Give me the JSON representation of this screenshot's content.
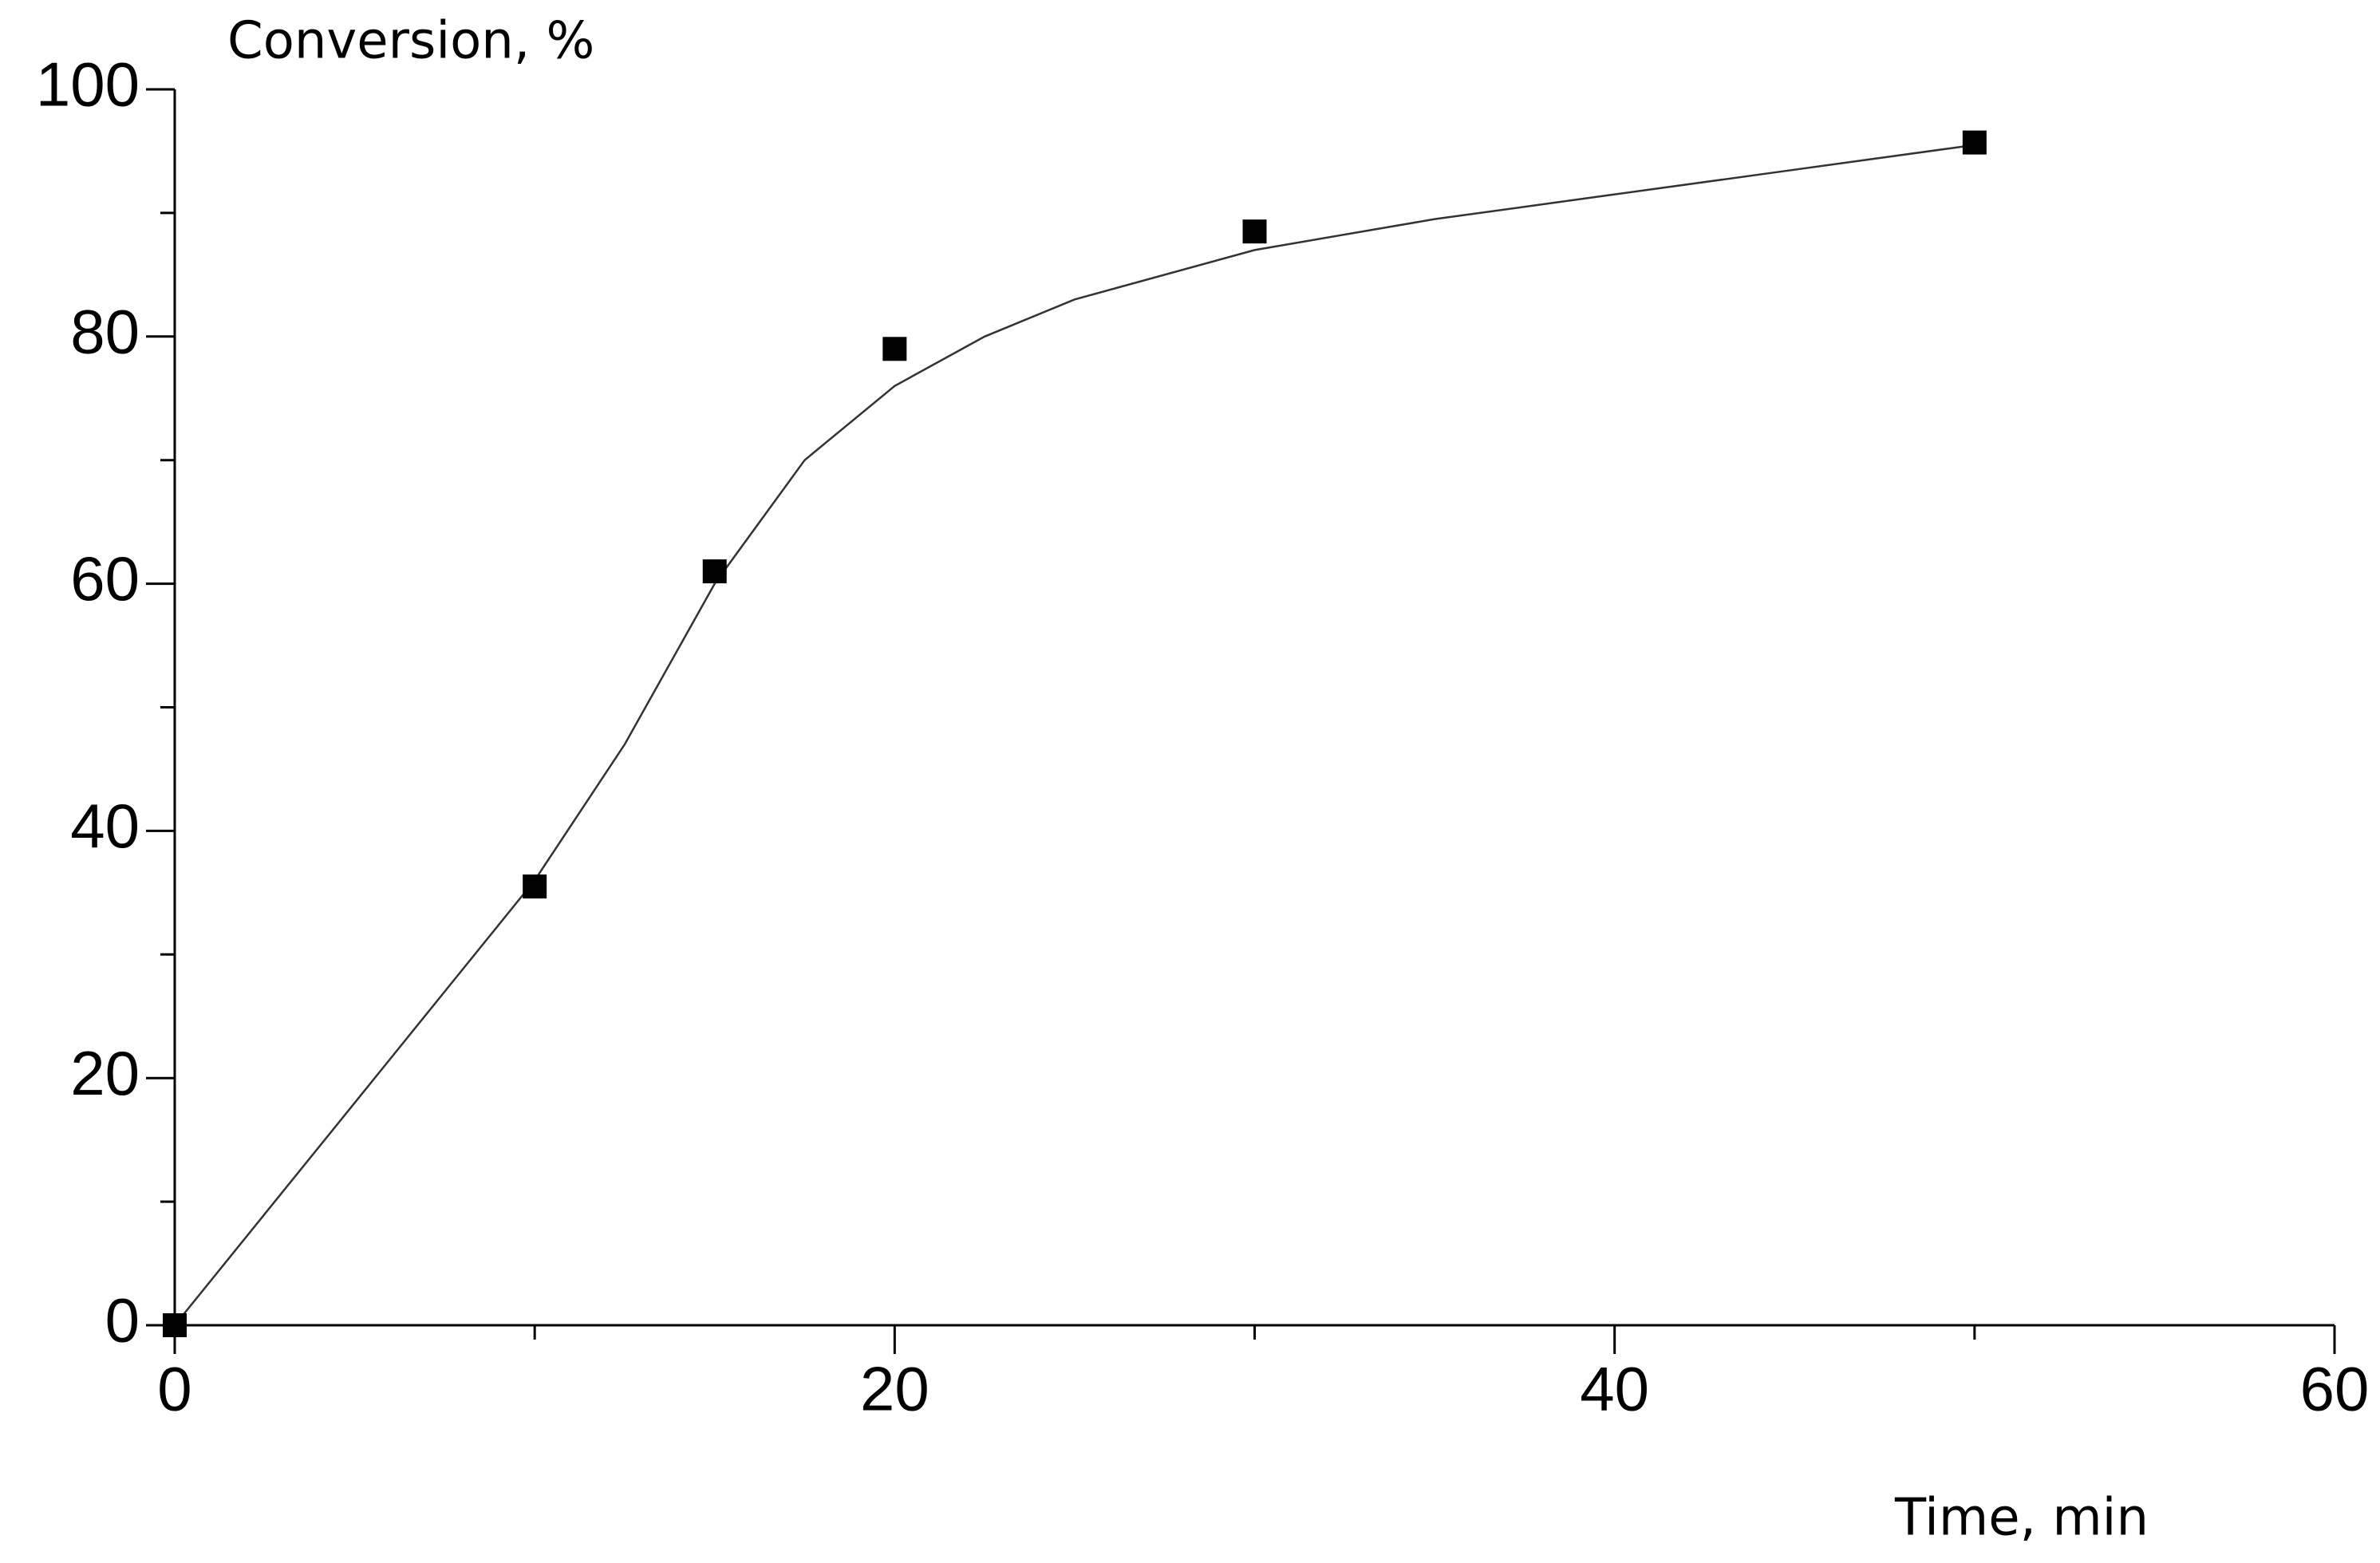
{
  "chart_data": {
    "type": "scatter",
    "xlabel": "Time, min",
    "ylabel": "Conversion, %",
    "xlim": [
      0,
      60
    ],
    "xticks": [
      0,
      20,
      40,
      60
    ],
    "xminorticks": [
      10,
      30,
      50
    ],
    "ylim": [
      0,
      100
    ],
    "yticks": [
      0,
      20,
      40,
      60,
      80,
      100
    ],
    "yminorticks": [
      10,
      30,
      50,
      70,
      90
    ],
    "grid": false,
    "series": [
      {
        "kind": "points",
        "color": "#000000",
        "x": [
          0,
          10,
          15,
          20,
          30,
          50
        ],
        "values": [
          0,
          35.5,
          61,
          79,
          88.5,
          95.7
        ]
      },
      {
        "kind": "line",
        "color": "#333333",
        "x": [
          0,
          2.5,
          5,
          7.5,
          10,
          12.5,
          15,
          17.5,
          20,
          22.5,
          25,
          30,
          35,
          40,
          45,
          50
        ],
        "values": [
          0,
          9,
          18,
          27,
          36,
          47,
          60,
          70,
          76,
          80,
          83,
          87,
          89.5,
          91.5,
          93.5,
          95.5
        ]
      }
    ]
  }
}
